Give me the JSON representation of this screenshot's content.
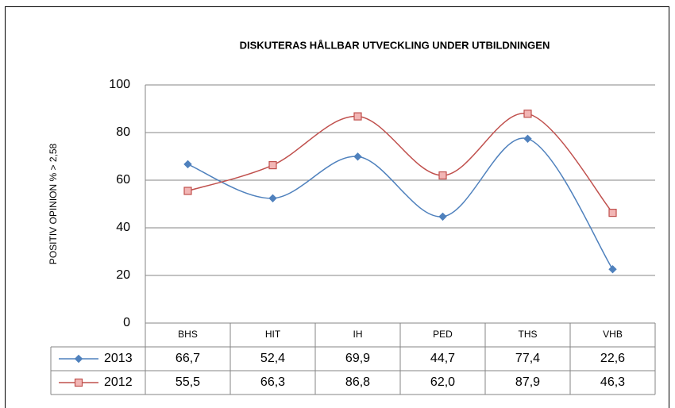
{
  "chart_data": {
    "type": "line",
    "title": "DISKUTERAS HÅLLBAR UTVECKLING UNDER UTBILDNINGEN",
    "y_label": "POSITIV OPINION % > 2,58",
    "categories": [
      "BHS",
      "HIT",
      "IH",
      "PED",
      "THS",
      "VHB"
    ],
    "series": [
      {
        "name": "2013",
        "color": "#4f81bd",
        "marker": "diamond",
        "values": [
          66.7,
          52.4,
          69.9,
          44.7,
          77.4,
          22.6
        ],
        "value_labels": [
          "66,7",
          "52,4",
          "69,9",
          "44,7",
          "77,4",
          "22,6"
        ]
      },
      {
        "name": "2012",
        "color": "#c0504d",
        "marker": "square",
        "values": [
          55.5,
          66.3,
          86.8,
          62.0,
          87.9,
          46.3
        ],
        "value_labels": [
          "55,5",
          "66,3",
          "86,8",
          "62,0",
          "87,9",
          "46,3"
        ]
      }
    ],
    "ylim": [
      0,
      100
    ],
    "yticks": [
      0,
      20,
      40,
      60,
      80,
      100
    ],
    "grid": true,
    "smooth": true,
    "data_table": true
  }
}
